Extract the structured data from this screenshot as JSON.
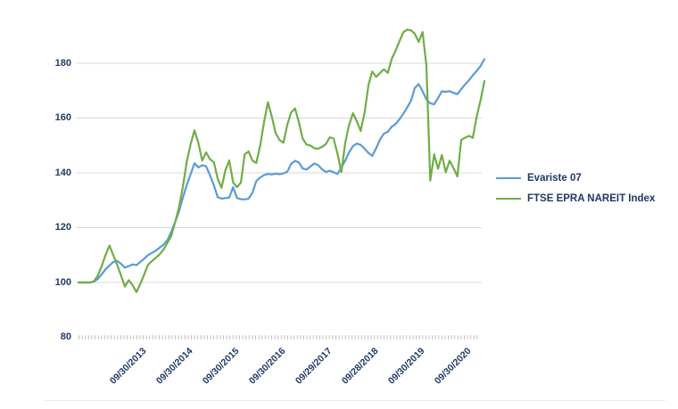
{
  "chart_data": {
    "type": "line",
    "title": "",
    "xlabel": "",
    "ylabel": "",
    "ylim": [
      80,
      195
    ],
    "y_ticks": [
      80,
      100,
      120,
      140,
      160,
      180
    ],
    "grid": "horizontal-light-gray",
    "baseline_style": "dense-tick-line-at-80",
    "legend_position": "right-middle",
    "n_points": 106,
    "x_tick_labels": [
      "09/30/2013",
      "09/30/2014",
      "09/30/2015",
      "09/30/2016",
      "09/29/2017",
      "09/28/2018",
      "09/30/2019",
      "09/30/2020"
    ],
    "x_tick_indices": [
      14,
      26,
      38,
      50,
      62,
      74,
      86,
      98
    ],
    "series": [
      {
        "name": "Evariste 07",
        "color": "#5B9BD5",
        "values": [
          100,
          100,
          100,
          100,
          100.3,
          101.3,
          103,
          104.8,
          106.2,
          107.5,
          107.9,
          106.8,
          105.4,
          106,
          106.6,
          106.3,
          107.5,
          108.7,
          110,
          110.8,
          111.6,
          112.7,
          113.8,
          115.5,
          118.5,
          122,
          126,
          131,
          135.5,
          139.5,
          143.5,
          142,
          142.8,
          142.4,
          139.2,
          135.5,
          131.2,
          130.6,
          130.8,
          131,
          134.8,
          130.8,
          130.4,
          130.3,
          130.6,
          132.8,
          137,
          138.3,
          139.2,
          139.6,
          139.4,
          139.7,
          139.5,
          139.8,
          140.4,
          143.3,
          144.4,
          143.8,
          141.6,
          141.2,
          142.3,
          143.4,
          142.8,
          141.3,
          140.3,
          140.8,
          140.2,
          139.6,
          142,
          144.5,
          147.5,
          149.8,
          150.7,
          150.2,
          148.8,
          147.3,
          146.2,
          149,
          152.2,
          154.3,
          155,
          156.8,
          157.8,
          159.5,
          161.5,
          163.8,
          166.3,
          171,
          172.4,
          169.8,
          166.8,
          165.4,
          165,
          167.3,
          169.8,
          169.6,
          169.8,
          169.2,
          168.7,
          170.5,
          172.3,
          173.8,
          175.6,
          177.2,
          179,
          181.5
        ]
      },
      {
        "name": "FTSE EPRA NAREIT Index",
        "color": "#70AD47",
        "values": [
          100,
          100,
          100,
          100,
          100.5,
          102.5,
          106,
          110,
          113.5,
          110,
          106.5,
          102.5,
          98.5,
          100.8,
          99,
          96.5,
          99.5,
          103,
          106.5,
          107.8,
          109,
          110.3,
          112,
          114.5,
          117,
          122,
          127.5,
          135,
          144,
          150.5,
          155.5,
          151,
          144.5,
          147.5,
          145,
          143.9,
          138,
          134.5,
          141,
          144.5,
          136.5,
          134.8,
          136.5,
          146.8,
          147.8,
          144.5,
          143.6,
          150,
          158.5,
          165.8,
          160.5,
          154.5,
          152,
          151,
          157.5,
          162,
          163.5,
          158.5,
          152.5,
          150.3,
          150,
          149,
          148.8,
          149.5,
          150.5,
          153,
          152.5,
          147,
          140.3,
          151,
          157.5,
          161.8,
          158.8,
          155.3,
          162,
          172,
          177,
          175,
          176.5,
          177.8,
          176.5,
          181.5,
          184.5,
          188,
          191.3,
          192.3,
          192,
          190.8,
          187.8,
          191.4,
          179,
          137.2,
          146.8,
          141.5,
          146.5,
          140.2,
          144.5,
          141.8,
          138.7,
          152,
          152.8,
          153.5,
          152.8,
          160.5,
          166.5,
          173.5
        ]
      }
    ]
  },
  "colors": {
    "background": "#FFFFFF",
    "axis_label_text": "#1F3864",
    "gridline": "#D9D9D9",
    "baseline_ticks": "#BFBFBF",
    "bottom_divider": "#ECECEC",
    "series_blue": "#5B9BD5",
    "series_green": "#70AD47"
  }
}
